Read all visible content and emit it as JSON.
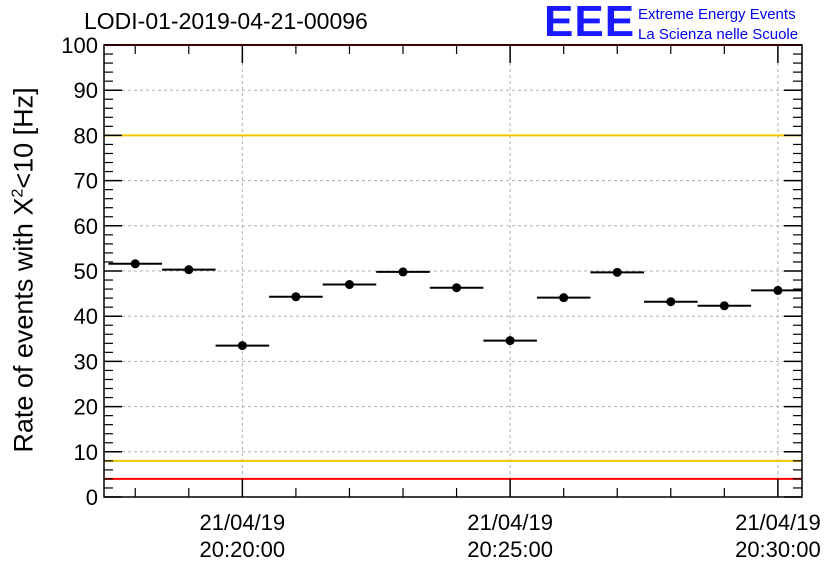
{
  "title": "LODI-01-2019-04-21-00096",
  "logo": {
    "mark": "EEE",
    "line1": "Extreme Energy Events",
    "line2": "La Scienza nelle Scuole"
  },
  "ylabel": {
    "prefix": "Rate of events with X",
    "superscript": "2",
    "suffix": "<10 [Hz]"
  },
  "chart_data": {
    "type": "scatter",
    "title": "LODI-01-2019-04-21-00096",
    "xlabel": "",
    "ylabel": "Rate of events with X²<10 [Hz]",
    "ylim": [
      0,
      100
    ],
    "yticks": [
      0,
      10,
      20,
      30,
      40,
      50,
      60,
      70,
      80,
      90,
      100
    ],
    "xlim": [
      "20:17:25",
      "20:30:27"
    ],
    "xticks": [
      {
        "date": "21/04/19",
        "time": "20:20:00"
      },
      {
        "date": "21/04/19",
        "time": "20:25:00"
      },
      {
        "date": "21/04/19",
        "time": "20:30:00"
      }
    ],
    "grid": true,
    "bin_width_s": 60,
    "points": [
      {
        "x": "20:18:00",
        "y": 51.6
      },
      {
        "x": "20:19:00",
        "y": 50.3
      },
      {
        "x": "20:20:00",
        "y": 33.5
      },
      {
        "x": "20:21:00",
        "y": 44.3
      },
      {
        "x": "20:22:00",
        "y": 47.0
      },
      {
        "x": "20:23:00",
        "y": 49.8
      },
      {
        "x": "20:24:00",
        "y": 46.3
      },
      {
        "x": "20:25:00",
        "y": 34.6
      },
      {
        "x": "20:26:00",
        "y": 44.1
      },
      {
        "x": "20:27:00",
        "y": 49.7
      },
      {
        "x": "20:28:00",
        "y": 43.2
      },
      {
        "x": "20:29:00",
        "y": 42.3
      },
      {
        "x": "20:30:00",
        "y": 45.7
      }
    ],
    "reference_lines": [
      {
        "y": 100,
        "color": "#ff0000"
      },
      {
        "y": 80,
        "color": "#f0c800"
      },
      {
        "y": 8,
        "color": "#f0c800"
      },
      {
        "y": 4,
        "color": "#ff0000"
      }
    ],
    "marker_color": "#000000"
  }
}
